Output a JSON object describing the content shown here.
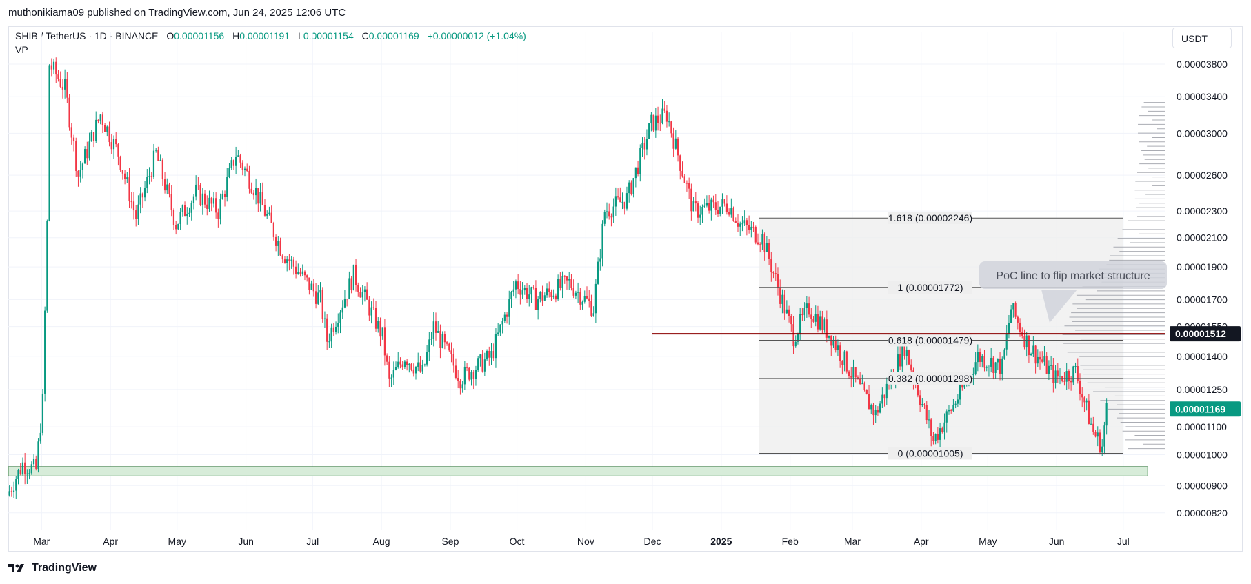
{
  "header": {
    "published_text": "muthonikiama09 published on TradingView.com, Jun 24, 2025 12:06 UTC"
  },
  "legend": {
    "symbol": "SHIB / TetherUS · 1D · BINANCE",
    "open_label": "O",
    "open": "0.00001156",
    "high_label": "H",
    "high": "0.00001191",
    "low_label": "L",
    "low": "0.00001154",
    "close_label": "C",
    "close": "0.00001169",
    "change": "+0.00000012 (+1.04%)",
    "indicator": "VP"
  },
  "currency": "USDT",
  "footer": {
    "brand": "TradingView"
  },
  "colors": {
    "up": "#089981",
    "down": "#f23645",
    "fib_zone": "#eeeeee",
    "poc_line": "#8b0000",
    "support_zone": "#d7ecd9"
  },
  "chart_data": {
    "type": "candlestick",
    "scale": "log",
    "ylim": [
      7.8e-06,
      4.05e-05
    ],
    "y_ticks": [
      "0.00003800",
      "0.00003400",
      "0.00003000",
      "0.00002600",
      "0.00002300",
      "0.00002100",
      "0.00001900",
      "0.00001700",
      "0.00001550",
      "0.00001400",
      "0.00001250",
      "0.00001100",
      "0.00001000",
      "0.00000900",
      "0.00000820"
    ],
    "x_ticks": [
      "Mar",
      "Apr",
      "May",
      "Jun",
      "Jul",
      "Aug",
      "Sep",
      "Oct",
      "Nov",
      "Dec",
      "2025",
      "Feb",
      "Mar",
      "Apr",
      "May",
      "Jun",
      "Jul"
    ],
    "x_range": [
      "2024-02-15",
      "2025-07-20"
    ],
    "price_path": [
      [
        "2024-02-15",
        8.7e-06
      ],
      [
        "2024-02-22",
        9.7e-06
      ],
      [
        "2024-02-28",
        9.5e-06
      ],
      [
        "2024-03-02",
        1.2e-05
      ],
      [
        "2024-03-04",
        2.2e-05
      ],
      [
        "2024-03-05",
        3.8e-05
      ],
      [
        "2024-03-12",
        3.5e-05
      ],
      [
        "2024-03-18",
        2.6e-05
      ],
      [
        "2024-03-28",
        3.2e-05
      ],
      [
        "2024-04-05",
        2.8e-05
      ],
      [
        "2024-04-13",
        2.25e-05
      ],
      [
        "2024-04-22",
        2.8e-05
      ],
      [
        "2024-05-01",
        2.2e-05
      ],
      [
        "2024-05-10",
        2.45e-05
      ],
      [
        "2024-05-20",
        2.3e-05
      ],
      [
        "2024-05-28",
        2.8e-05
      ],
      [
        "2024-06-05",
        2.5e-05
      ],
      [
        "2024-06-18",
        2e-05
      ],
      [
        "2024-07-05",
        1.7e-05
      ],
      [
        "2024-07-08",
        1.48e-05
      ],
      [
        "2024-07-20",
        1.85e-05
      ],
      [
        "2024-08-02",
        1.5e-05
      ],
      [
        "2024-08-05",
        1.28e-05
      ],
      [
        "2024-08-12",
        1.4e-05
      ],
      [
        "2024-08-20",
        1.32e-05
      ],
      [
        "2024-08-25",
        1.55e-05
      ],
      [
        "2024-09-06",
        1.3e-05
      ],
      [
        "2024-09-20",
        1.4e-05
      ],
      [
        "2024-10-01",
        1.8e-05
      ],
      [
        "2024-10-10",
        1.7e-05
      ],
      [
        "2024-10-25",
        1.8e-05
      ],
      [
        "2024-11-05",
        1.65e-05
      ],
      [
        "2024-11-10",
        2.3e-05
      ],
      [
        "2024-11-20",
        2.4e-05
      ],
      [
        "2024-12-01",
        3.1e-05
      ],
      [
        "2024-12-08",
        3.2e-05
      ],
      [
        "2024-12-20",
        2.3e-05
      ],
      [
        "2025-01-05",
        2.35e-05
      ],
      [
        "2025-01-10",
        2.2e-05
      ],
      [
        "2025-01-20",
        2.1e-05
      ],
      [
        "2025-02-03",
        1.5e-05
      ],
      [
        "2025-02-10",
        1.65e-05
      ],
      [
        "2025-02-20",
        1.5e-05
      ],
      [
        "2025-03-05",
        1.25e-05
      ],
      [
        "2025-03-12",
        1.15e-05
      ],
      [
        "2025-03-25",
        1.45e-05
      ],
      [
        "2025-04-07",
        1.05e-05
      ],
      [
        "2025-04-20",
        1.25e-05
      ],
      [
        "2025-04-27",
        1.4e-05
      ],
      [
        "2025-05-08",
        1.35e-05
      ],
      [
        "2025-05-12",
        1.65e-05
      ],
      [
        "2025-05-20",
        1.45e-05
      ],
      [
        "2025-06-01",
        1.3e-05
      ],
      [
        "2025-06-10",
        1.33e-05
      ],
      [
        "2025-06-18",
        1.08e-05
      ],
      [
        "2025-06-22",
        1.03e-05
      ],
      [
        "2025-06-24",
        1.17e-05
      ]
    ],
    "current_price": "0.00001169",
    "poc_price": "0.00001512",
    "fib_levels": [
      {
        "label": "1.618 (0.00002246)",
        "price": 2.246e-05
      },
      {
        "label": "1 (0.00001772)",
        "price": 1.772e-05
      },
      {
        "label": "0.618 (0.00001479)",
        "price": 1.479e-05
      },
      {
        "label": "0.382 (0.00001298)",
        "price": 1.298e-05
      },
      {
        "label": "0 (0.00001005)",
        "price": 1.005e-05
      }
    ],
    "fib_range_dates": [
      "2025-01-18",
      "2025-07-01"
    ],
    "support_zone": {
      "low": 9.3e-06,
      "high": 9.6e-06,
      "end_date": "2025-07-12"
    },
    "annotation": "PoC line to flip market structure",
    "grid": true
  }
}
